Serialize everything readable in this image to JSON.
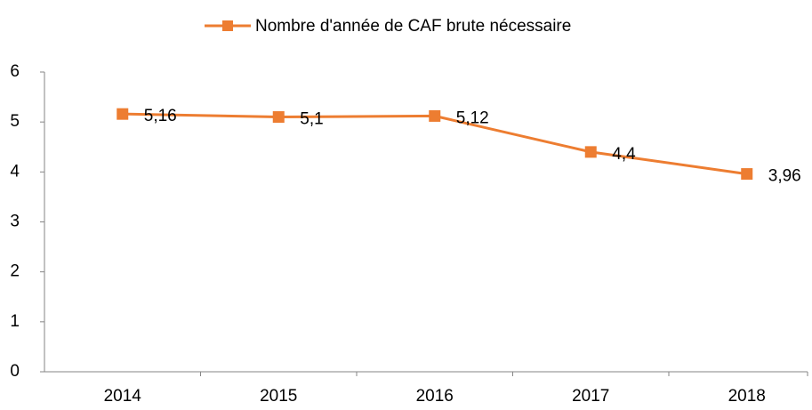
{
  "chart_data": {
    "type": "line",
    "categories": [
      "2014",
      "2015",
      "2016",
      "2017",
      "2018"
    ],
    "series": [
      {
        "name": "Nombre d'année de CAF brute nécessaire",
        "color": "#ed7d31",
        "values": [
          5.16,
          5.1,
          5.12,
          4.4,
          3.96
        ],
        "value_labels": [
          "5,16",
          "5,1",
          "5,12",
          "4,4",
          "3,96"
        ]
      }
    ],
    "ylim": [
      0,
      6
    ],
    "yticks": [
      0,
      1,
      2,
      3,
      4,
      5,
      6
    ],
    "grid": false,
    "legend": "top"
  }
}
